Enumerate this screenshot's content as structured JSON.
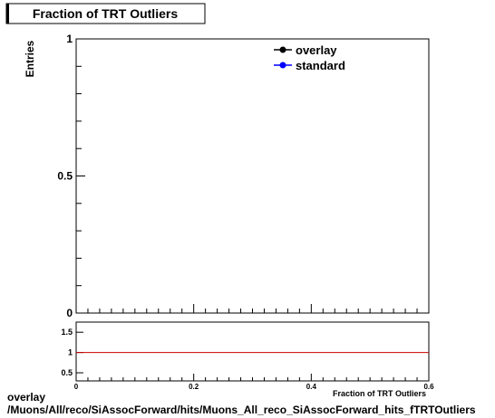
{
  "chart_data": [
    {
      "type": "line",
      "title": "Fraction of TRT Outliers",
      "ylabel": "Entries",
      "xlabel": "Fraction of TRT Outliers",
      "xlim": [
        0,
        0.6
      ],
      "ylim": [
        0,
        1
      ],
      "xticks": [
        "0",
        "0.2",
        "0.4",
        "0.6"
      ],
      "yticks": [
        "0",
        "0.5",
        "1"
      ],
      "legend": {
        "placement": "top-right",
        "entries": [
          {
            "name": "overlay",
            "color": "#000000"
          },
          {
            "name": "standard",
            "color": "#0000ff"
          }
        ]
      },
      "series": [
        {
          "name": "overlay",
          "color": "#000000",
          "x": [],
          "y": []
        },
        {
          "name": "standard",
          "color": "#0000ff",
          "x": [],
          "y": []
        }
      ]
    },
    {
      "type": "line",
      "xlim": [
        0,
        0.6
      ],
      "ylim": [
        0.3,
        1.75
      ],
      "xticks": [
        "0",
        "0.2",
        "0.4",
        "0.6"
      ],
      "yticks": [
        "0.5",
        "1",
        "1.5"
      ],
      "reference_line": {
        "y": 1,
        "color": "#cc0000"
      }
    }
  ],
  "footer": {
    "line1": "overlay",
    "line2": "/Muons/All/reco/SiAssocForward/hits/Muons_All_reco_SiAssocForward_hits_fTRTOutliers"
  }
}
